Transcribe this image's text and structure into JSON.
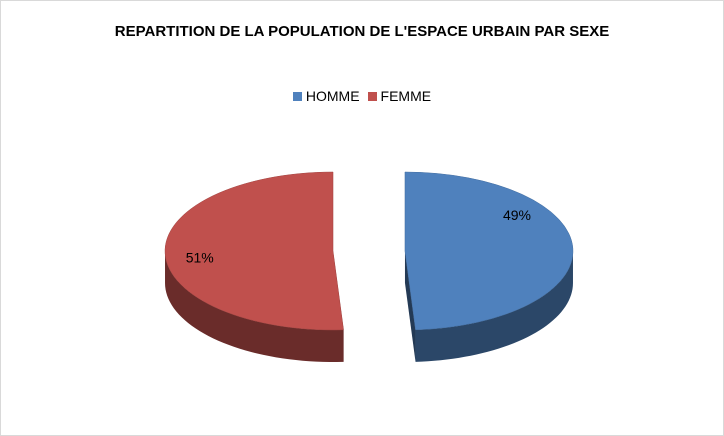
{
  "chart_data": {
    "type": "pie",
    "title": "REPARTITION DE LA POPULATION DE L'ESPACE URBAIN PAR SEXE",
    "categories": [
      "HOMME",
      "FEMME"
    ],
    "values": [
      49,
      51
    ],
    "value_labels": [
      "49%",
      "51%"
    ],
    "colors": [
      "#4f81bd",
      "#c0504d"
    ],
    "legend": "top"
  }
}
